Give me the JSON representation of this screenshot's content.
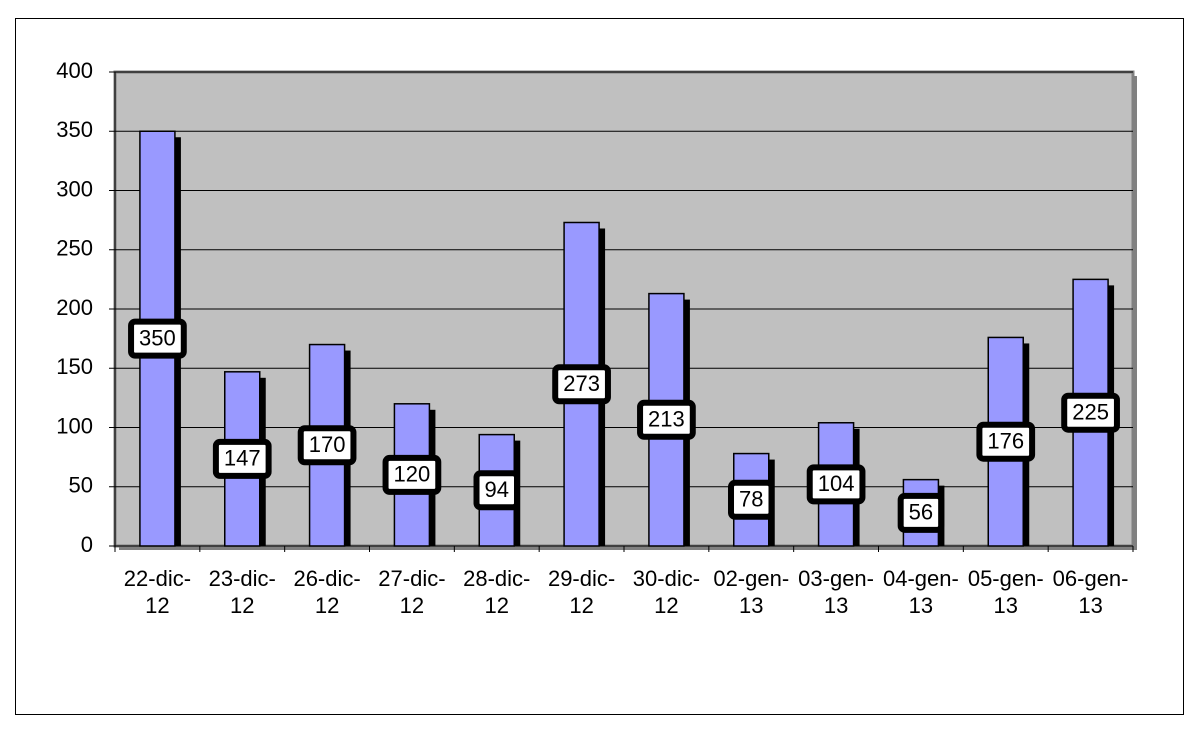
{
  "chart_data": {
    "type": "bar",
    "categories": [
      "22-dic-12",
      "23-dic-12",
      "26-dic-12",
      "27-dic-12",
      "28-dic-12",
      "29-dic-12",
      "30-dic-12",
      "02-gen-13",
      "03-gen-13",
      "04-gen-13",
      "05-gen-13",
      "06-gen-13"
    ],
    "values": [
      350,
      147,
      170,
      120,
      94,
      273,
      213,
      78,
      104,
      56,
      176,
      225
    ],
    "color": "#9999ff",
    "ylim": [
      0,
      400
    ],
    "yticks": [
      0,
      50,
      100,
      150,
      200,
      250,
      300,
      350,
      400
    ],
    "grid": true
  }
}
